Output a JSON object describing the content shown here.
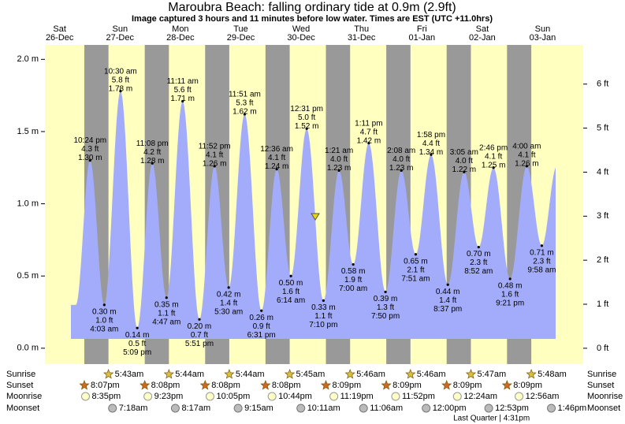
{
  "chart_data": {
    "type": "tide",
    "title": "Maroubra Beach: falling  ordinary tide at 0.9m (2.9ft)",
    "subtitle": "Image captured 3 hours and 11 minutes before low water. Times are EST (UTC +11.0hrs)",
    "ylim": [
      -0.11,
      2.1
    ],
    "yticks": [
      {
        "value": 0,
        "label": "0.0 m"
      },
      {
        "value": 0.5,
        "label": "0.5 m"
      },
      {
        "value": 1,
        "label": "1.0 m"
      },
      {
        "value": 1.5,
        "label": "1.5 m"
      },
      {
        "value": 2,
        "label": "2.0 m"
      }
    ],
    "y2lim": [
      -0.36,
      6.89
    ],
    "y2ticks": [
      {
        "value": 0,
        "label": "0 ft"
      },
      {
        "value": 1,
        "label": "1 ft"
      },
      {
        "value": 2,
        "label": "2 ft"
      },
      {
        "value": 3,
        "label": "3 ft"
      },
      {
        "value": 4,
        "label": "4 ft"
      },
      {
        "value": 5,
        "label": "5 ft"
      },
      {
        "value": 6,
        "label": "6 ft"
      }
    ],
    "day_label_color": "#e00000",
    "day_color": "#ffffc0",
    "night_color": "#999999",
    "tide_color": "#a3acfa",
    "row_labels": {
      "sunrise": "Sunrise",
      "sunset": "Sunset",
      "moonrise": "Moonrise",
      "moonset": "Moonset"
    },
    "days": [
      {
        "weekday": "Sat",
        "date": "26-Dec",
        "sunrise": null,
        "sunset": "8:07pm",
        "moonrise": "8:35pm",
        "moonset": null,
        "tides": [
          {
            "time": "10:24 pm",
            "m": 1.3,
            "m_label": "1.30 m",
            "ft_label": "4.3 ft"
          }
        ]
      },
      {
        "weekday": "Sun",
        "date": "27-Dec",
        "sunrise": "5:43am",
        "sunset": "8:08pm",
        "moonrise": "9:23pm",
        "moonset": "7:18am",
        "tides": [
          {
            "time": "4:03 am",
            "m": 0.3,
            "m_label": "0.30 m",
            "ft_label": "1.0 ft"
          },
          {
            "time": "10:30 am",
            "m": 1.78,
            "m_label": "1.78 m",
            "ft_label": "5.8 ft"
          },
          {
            "time": "5:09 pm",
            "m": 0.14,
            "m_label": "0.14 m",
            "ft_label": "0.5 ft"
          },
          {
            "time": "11:08 pm",
            "m": 1.28,
            "m_label": "1.28 m",
            "ft_label": "4.2 ft"
          }
        ]
      },
      {
        "weekday": "Mon",
        "date": "28-Dec",
        "sunrise": "5:44am",
        "sunset": "8:08pm",
        "moonrise": "10:05pm",
        "moonset": "8:17am",
        "tides": [
          {
            "time": "4:47 am",
            "m": 0.35,
            "m_label": "0.35 m",
            "ft_label": "1.1 ft"
          },
          {
            "time": "11:11 am",
            "m": 1.71,
            "m_label": "1.71 m",
            "ft_label": "5.6 ft"
          },
          {
            "time": "5:51 pm",
            "m": 0.2,
            "m_label": "0.20 m",
            "ft_label": "0.7 ft"
          },
          {
            "time": "11:52 pm",
            "m": 1.26,
            "m_label": "1.26 m",
            "ft_label": "4.1 ft"
          }
        ]
      },
      {
        "weekday": "Tue",
        "date": "29-Dec",
        "sunrise": "5:44am",
        "sunset": "8:08pm",
        "moonrise": "10:44pm",
        "moonset": "9:15am",
        "tides": [
          {
            "time": "5:30 am",
            "m": 0.42,
            "m_label": "0.42 m",
            "ft_label": "1.4 ft"
          },
          {
            "time": "11:51 am",
            "m": 1.62,
            "m_label": "1.62 m",
            "ft_label": "5.3 ft"
          },
          {
            "time": "6:31 pm",
            "m": 0.26,
            "m_label": "0.26 m",
            "ft_label": "0.9 ft"
          }
        ]
      },
      {
        "weekday": "Wed",
        "date": "30-Dec",
        "sunrise": "5:45am",
        "sunset": "8:09pm",
        "moonrise": "11:19pm",
        "moonset": "10:11am",
        "tides": [
          {
            "time": "12:36 am",
            "m": 1.24,
            "m_label": "1.24 m",
            "ft_label": "4.1 ft"
          },
          {
            "time": "6:14 am",
            "m": 0.5,
            "m_label": "0.50 m",
            "ft_label": "1.6 ft"
          },
          {
            "time": "12:31 pm",
            "m": 1.52,
            "m_label": "1.52 m",
            "ft_label": "5.0 ft"
          },
          {
            "time": "7:10 pm",
            "m": 0.33,
            "m_label": "0.33 m",
            "ft_label": "1.1 ft"
          }
        ]
      },
      {
        "weekday": "Thu",
        "date": "31-Dec",
        "sunrise": "5:46am",
        "sunset": "8:09pm",
        "moonrise": "11:52pm",
        "moonset": "11:06am",
        "tides": [
          {
            "time": "1:21 am",
            "m": 1.23,
            "m_label": "1.23 m",
            "ft_label": "4.0 ft"
          },
          {
            "time": "7:00 am",
            "m": 0.58,
            "m_label": "0.58 m",
            "ft_label": "1.9 ft"
          },
          {
            "time": "1:11 pm",
            "m": 1.42,
            "m_label": "1.42 m",
            "ft_label": "4.7 ft"
          },
          {
            "time": "7:50 pm",
            "m": 0.39,
            "m_label": "0.39 m",
            "ft_label": "1.3 ft"
          }
        ]
      },
      {
        "weekday": "Fri",
        "date": "01-Jan",
        "sunrise": "5:46am",
        "sunset": "8:09pm",
        "moonrise": null,
        "moonset": "12:00pm",
        "moon_phase": "Last Quarter | 4:31pm",
        "tides": [
          {
            "time": "2:08 am",
            "m": 1.23,
            "m_label": "1.23 m",
            "ft_label": "4.0 ft"
          },
          {
            "time": "7:51 am",
            "m": 0.65,
            "m_label": "0.65 m",
            "ft_label": "2.1 ft"
          },
          {
            "time": "1:58 pm",
            "m": 1.34,
            "m_label": "1.34 m",
            "ft_label": "4.4 ft"
          },
          {
            "time": "8:37 pm",
            "m": 0.44,
            "m_label": "0.44 m",
            "ft_label": "1.4 ft"
          }
        ]
      },
      {
        "weekday": "Sat",
        "date": "02-Jan",
        "sunrise": "5:47am",
        "sunset": "8:09pm",
        "moonrise": "12:24am",
        "moonset": "12:53pm",
        "tides": [
          {
            "time": "3:05 am",
            "m": 1.22,
            "m_label": "1.22 m",
            "ft_label": "4.0 ft"
          },
          {
            "time": "8:52 am",
            "m": 0.7,
            "m_label": "0.70 m",
            "ft_label": "2.3 ft"
          },
          {
            "time": "2:46 pm",
            "m": 1.25,
            "m_label": "1.25 m",
            "ft_label": "4.1 ft"
          },
          {
            "time": "9:21 pm",
            "m": 0.48,
            "m_label": "0.48 m",
            "ft_label": "1.6 ft"
          }
        ]
      },
      {
        "weekday": "Sun",
        "date": "03-Jan",
        "sunrise": "5:48am",
        "sunset": null,
        "moonrise": "12:56am",
        "moonset": "1:46pm",
        "tides": [
          {
            "time": "4:00 am",
            "m": 1.26,
            "m_label": "1.26 m",
            "ft_label": "4.1 ft"
          },
          {
            "time": "9:58 am",
            "m": 0.71,
            "m_label": "0.71 m",
            "ft_label": "2.3 ft"
          }
        ]
      }
    ]
  }
}
